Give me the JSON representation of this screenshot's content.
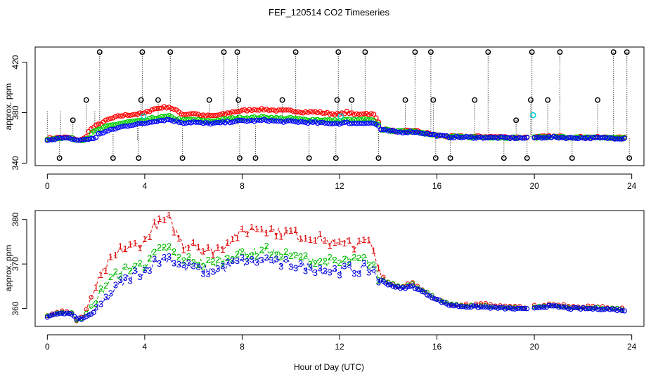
{
  "chart_data": [
    {
      "type": "scatter",
      "title": "FEF_120514  CO2 Timeseries",
      "xlabel": "",
      "ylabel": "approx. ppm",
      "xlim": [
        -0.5,
        24.5
      ],
      "ylim": [
        338,
        432
      ],
      "x_ticks": [
        0,
        4,
        8,
        12,
        16,
        20,
        24
      ],
      "y_ticks": [
        340,
        380,
        420
      ],
      "grid": false,
      "description_marks": "open circles; vertical dotted lines join series at each time",
      "colors": {
        "high_low": "#000000",
        "s1": "#ff0000",
        "s2": "#00cc00",
        "s3": "#0000ff",
        "flag": "#00cccc"
      },
      "spike_times": [
        2.15,
        3.9,
        5.05,
        7.25,
        7.8,
        10.2,
        11.95,
        13.05,
        15.1,
        15.75,
        18.1,
        19.9,
        21.05,
        23.25,
        23.8
      ],
      "spike_value": 428,
      "mid_markers": {
        "x": [
          1.05,
          1.6,
          3.85,
          4.55,
          6.65,
          7.85,
          9.65,
          11.9,
          12.5,
          14.7,
          15.85,
          17.55,
          19.25,
          19.85,
          20.55,
          22.6
        ],
        "y": [
          374,
          390,
          390,
          390,
          390,
          390,
          390,
          390,
          390,
          390,
          390,
          390,
          374,
          390,
          390,
          390
        ]
      },
      "low_markers": {
        "x": [
          0.5,
          2.7,
          3.75,
          5.55,
          7.9,
          8.55,
          10.75,
          11.85,
          13.6,
          15.95,
          16.55,
          18.75,
          19.7,
          21.55,
          23.9
        ],
        "y": [
          344,
          344,
          344,
          344,
          344,
          344,
          344,
          344,
          344,
          344,
          344,
          344,
          344,
          344,
          344
        ]
      },
      "flag_points": {
        "x": [
          3.95,
          12.05,
          19.95
        ],
        "y": [
          377,
          377,
          378
        ]
      }
    },
    {
      "type": "line",
      "title": "",
      "xlabel": "Hour of Day (UTC)",
      "ylabel": "approx. ppm",
      "xlim": [
        -0.5,
        24.5
      ],
      "ylim": [
        356,
        382
      ],
      "x_ticks": [
        0,
        4,
        8,
        12,
        16,
        20,
        24
      ],
      "y_ticks": [
        360,
        370,
        380
      ],
      "grid": false,
      "series": [
        {
          "name": "1",
          "color": "#dd0000",
          "points": [
            [
              0,
              358.5
            ],
            [
              0.5,
              359.5
            ],
            [
              1.0,
              359.2
            ],
            [
              1.2,
              357.2
            ],
            [
              1.5,
              358.5
            ],
            [
              2.0,
              365
            ],
            [
              2.5,
              370
            ],
            [
              3.0,
              373
            ],
            [
              3.5,
              374
            ],
            [
              4.0,
              375
            ],
            [
              4.3,
              378
            ],
            [
              4.7,
              379.5
            ],
            [
              5.0,
              380
            ],
            [
              5.3,
              377
            ],
            [
              5.6,
              374
            ],
            [
              6.0,
              375
            ],
            [
              6.4,
              373
            ],
            [
              6.8,
              373
            ],
            [
              7.2,
              374
            ],
            [
              7.6,
              376
            ],
            [
              8.0,
              377
            ],
            [
              8.5,
              378
            ],
            [
              9.0,
              378
            ],
            [
              9.5,
              377
            ],
            [
              10.0,
              377
            ],
            [
              10.5,
              376
            ],
            [
              11.0,
              376
            ],
            [
              11.5,
              375
            ],
            [
              12.0,
              374
            ],
            [
              12.3,
              376
            ],
            [
              12.6,
              374
            ],
            [
              13.0,
              375
            ],
            [
              13.4,
              374
            ],
            [
              13.6,
              368
            ],
            [
              14.0,
              366
            ],
            [
              14.5,
              365
            ],
            [
              15.0,
              366
            ],
            [
              15.5,
              364
            ],
            [
              16.0,
              362
            ],
            [
              16.5,
              361
            ],
            [
              17.0,
              361
            ],
            [
              18.0,
              361
            ],
            [
              19.0,
              360.5
            ],
            [
              19.8,
              360.3
            ],
            [
              20.0,
              360.6
            ],
            [
              20.5,
              361
            ],
            [
              21.0,
              361
            ],
            [
              21.5,
              360.5
            ],
            [
              22.0,
              360.5
            ],
            [
              23.0,
              360.3
            ],
            [
              23.7,
              360
            ]
          ]
        },
        {
          "name": "2",
          "color": "#00bb00",
          "points": [
            [
              0,
              358.3
            ],
            [
              0.5,
              359.2
            ],
            [
              1.0,
              359.0
            ],
            [
              1.2,
              357.5
            ],
            [
              1.5,
              358.0
            ],
            [
              2.0,
              362
            ],
            [
              2.5,
              366
            ],
            [
              3.0,
              368
            ],
            [
              3.5,
              369.5
            ],
            [
              4.0,
              370
            ],
            [
              4.3,
              372
            ],
            [
              4.7,
              373
            ],
            [
              5.0,
              373.5
            ],
            [
              5.3,
              371.5
            ],
            [
              5.6,
              370.5
            ],
            [
              6.0,
              371
            ],
            [
              6.4,
              370
            ],
            [
              6.8,
              370
            ],
            [
              7.2,
              371
            ],
            [
              7.6,
              372
            ],
            [
              8.0,
              372.5
            ],
            [
              8.5,
              372.5
            ],
            [
              9.0,
              373
            ],
            [
              9.5,
              372
            ],
            [
              10.0,
              372
            ],
            [
              10.5,
              371
            ],
            [
              11.0,
              371
            ],
            [
              11.5,
              370.5
            ],
            [
              12.0,
              370
            ],
            [
              12.3,
              371
            ],
            [
              12.6,
              370.5
            ],
            [
              13.0,
              371
            ],
            [
              13.4,
              370
            ],
            [
              13.6,
              367
            ],
            [
              14.0,
              366
            ],
            [
              14.5,
              365
            ],
            [
              15.0,
              365.5
            ],
            [
              15.5,
              364
            ],
            [
              16.0,
              362
            ],
            [
              16.5,
              361
            ],
            [
              17.0,
              360.7
            ],
            [
              18.0,
              360.5
            ],
            [
              19.0,
              360.2
            ],
            [
              19.8,
              360
            ],
            [
              20.0,
              360.4
            ],
            [
              20.5,
              360.8
            ],
            [
              21.0,
              360.7
            ],
            [
              21.5,
              360.2
            ],
            [
              22.0,
              360.2
            ],
            [
              23.0,
              360.1
            ],
            [
              23.7,
              359.8
            ]
          ]
        },
        {
          "name": "3",
          "color": "#0000dd",
          "points": [
            [
              0,
              358.0
            ],
            [
              0.5,
              359.0
            ],
            [
              1.0,
              358.8
            ],
            [
              1.2,
              357.6
            ],
            [
              1.5,
              357.8
            ],
            [
              2.0,
              359.5
            ],
            [
              2.5,
              362.5
            ],
            [
              3.0,
              365.5
            ],
            [
              3.5,
              367.5
            ],
            [
              4.0,
              368.5
            ],
            [
              4.3,
              370
            ],
            [
              4.7,
              371
            ],
            [
              5.0,
              371.5
            ],
            [
              5.3,
              370
            ],
            [
              5.6,
              369
            ],
            [
              6.0,
              369.5
            ],
            [
              6.4,
              368.5
            ],
            [
              6.8,
              368.5
            ],
            [
              7.2,
              369
            ],
            [
              7.6,
              370
            ],
            [
              8.0,
              370.5
            ],
            [
              8.5,
              370.5
            ],
            [
              9.0,
              371
            ],
            [
              9.5,
              370
            ],
            [
              10.0,
              370
            ],
            [
              10.5,
              369.5
            ],
            [
              11.0,
              369
            ],
            [
              11.5,
              368.5
            ],
            [
              12.0,
              368.5
            ],
            [
              12.3,
              369
            ],
            [
              12.6,
              368.5
            ],
            [
              13.0,
              369
            ],
            [
              13.4,
              368.5
            ],
            [
              13.6,
              366.5
            ],
            [
              14.0,
              365.5
            ],
            [
              14.5,
              364.5
            ],
            [
              15.0,
              365
            ],
            [
              15.5,
              363.5
            ],
            [
              16.0,
              362
            ],
            [
              16.5,
              360.8
            ],
            [
              17.0,
              360.5
            ],
            [
              18.0,
              360.3
            ],
            [
              19.0,
              360
            ],
            [
              19.8,
              359.8
            ],
            [
              20.0,
              360.2
            ],
            [
              20.5,
              360.5
            ],
            [
              21.0,
              360.4
            ],
            [
              21.5,
              360
            ],
            [
              22.0,
              360
            ],
            [
              23.0,
              359.9
            ],
            [
              23.7,
              359.6
            ]
          ]
        }
      ]
    }
  ]
}
